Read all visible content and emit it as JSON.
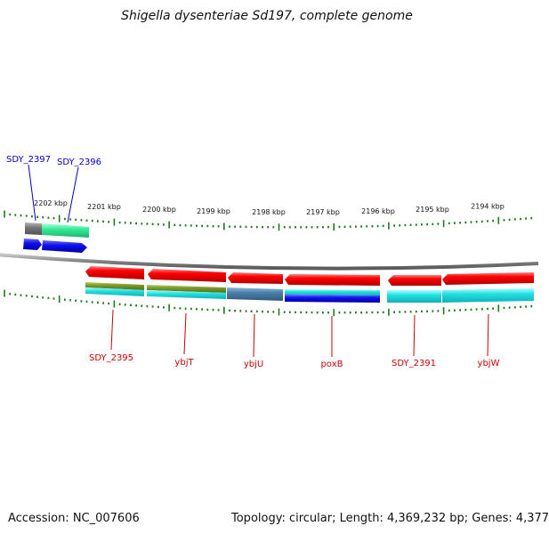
{
  "title": "Shigella dysenteriae Sd197, complete genome",
  "footer": {
    "accession": "Accession: NC_007606",
    "summary": "Topology: circular; Length: 4,369,232 bp; Genes: 4,377"
  },
  "colors": {
    "background": "#ffffff",
    "backbone": "#888888",
    "tick": "#1f7a1f",
    "forward_label": "#0000cc",
    "reverse_label": "#cc0000",
    "red_gene": "#ee0000",
    "cyan_feature": "#22dddd",
    "blue_feature": "#1010ee",
    "green_feature": "#33ee99",
    "gray_feature": "#777777",
    "olive_feature": "#7a9a2a",
    "steel_feature": "#4a7fa8"
  },
  "scale_labels": [
    {
      "text": "2202 kbp",
      "kbp": 2202
    },
    {
      "text": "2201 kbp",
      "kbp": 2201
    },
    {
      "text": "2200 kbp",
      "kbp": 2200
    },
    {
      "text": "2199 kbp",
      "kbp": 2199
    },
    {
      "text": "2198 kbp",
      "kbp": 2198
    },
    {
      "text": "2197 kbp",
      "kbp": 2197
    },
    {
      "text": "2196 kbp",
      "kbp": 2196
    },
    {
      "text": "2195 kbp",
      "kbp": 2195
    },
    {
      "text": "2194 kbp",
      "kbp": 2194
    }
  ],
  "forward_genes": [
    {
      "label": "SDY_2397",
      "strand": "forward",
      "feature_color": "gray"
    },
    {
      "label": "SDY_2396",
      "strand": "forward",
      "feature_color": "green"
    }
  ],
  "reverse_genes": [
    {
      "label": "SDY_2395",
      "strand": "reverse"
    },
    {
      "label": "ybjT",
      "strand": "reverse"
    },
    {
      "label": "ybjU",
      "strand": "reverse"
    },
    {
      "label": "poxB",
      "strand": "reverse"
    },
    {
      "label": "SDY_2391",
      "strand": "reverse"
    },
    {
      "label": "ybjW",
      "strand": "reverse"
    }
  ]
}
